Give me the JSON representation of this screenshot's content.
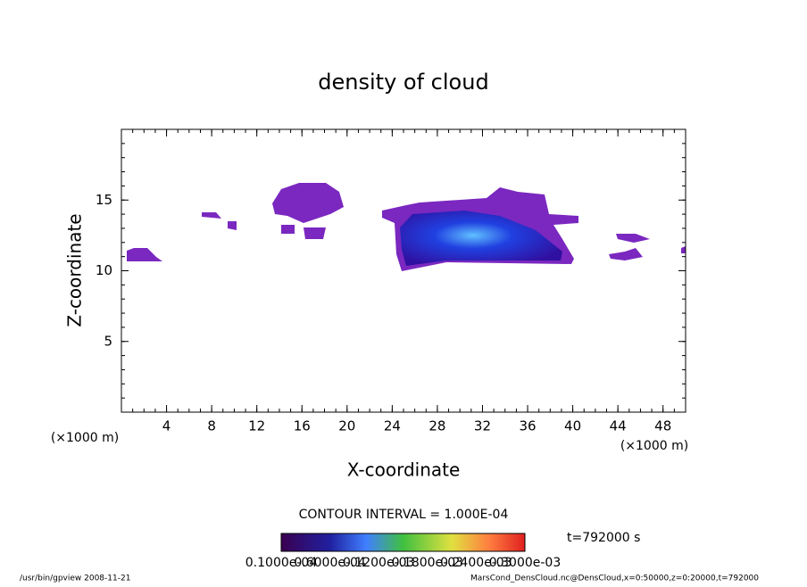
{
  "chart_data": {
    "type": "contour",
    "title": "density of cloud",
    "xlabel": "X-coordinate",
    "ylabel": "Z-coordinate",
    "x_unit_left": "(×1000 m)",
    "x_unit_right": "(×1000 m)",
    "xlim": [
      0,
      50
    ],
    "xticks": [
      4,
      8,
      12,
      16,
      20,
      24,
      28,
      32,
      36,
      40,
      44,
      48
    ],
    "ylim": [
      0,
      20
    ],
    "yticks": [
      5,
      10,
      15
    ],
    "contour_interval": "CONTOUR INTERVAL = 1.000E-04",
    "time_label": "t=792000 s",
    "colorbar_labels": [
      "0.1000e-04",
      "0.6000e-04",
      "0.1200e-03",
      "0.1800e-03",
      "0.2400e-03",
      "0.3000e-03"
    ],
    "footer_left": "/usr/bin/gpview   2008-11-21",
    "footer_right": "MarsCond_DensCloud.nc@DensCloud,x=0:50000,z=0:20000,t=792000"
  }
}
